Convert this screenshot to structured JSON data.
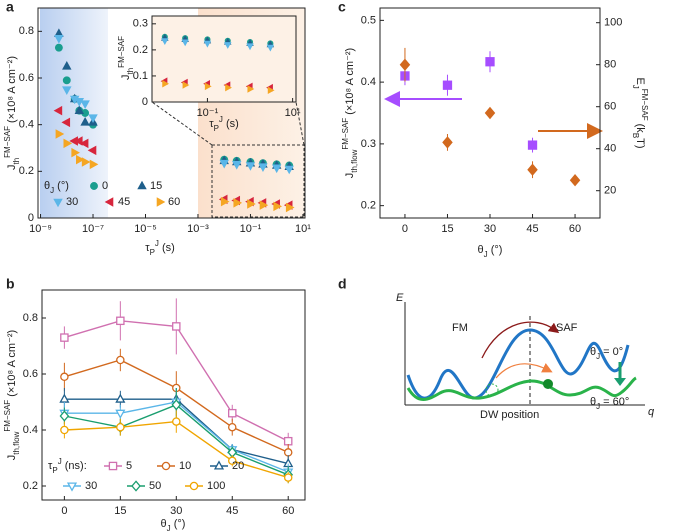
{
  "panel_labels": [
    "a",
    "b",
    "c",
    "d"
  ],
  "chart_data": [
    {
      "type": "scatter",
      "x_scale": "log",
      "x": [
        5e-09,
        1e-08,
        2e-08,
        3e-08,
        5e-08,
        1e-07,
        0.01,
        0.03,
        0.1,
        0.3,
        1,
        3
      ],
      "series": [
        {
          "name": "0",
          "color": "#1a9e8f",
          "marker": "circle",
          "values": [
            0.73,
            0.59,
            0.51,
            0.46,
            0.45,
            0.4,
            0.25,
            0.245,
            0.24,
            0.235,
            0.23,
            0.225
          ]
        },
        {
          "name": "15",
          "color": "#1f5f8b",
          "marker": "triangle-up",
          "values": [
            0.79,
            0.65,
            0.51,
            0.46,
            0.41,
            0.41,
            0.245,
            0.24,
            0.235,
            0.23,
            0.225,
            0.22
          ]
        },
        {
          "name": "30",
          "color": "#5bb6e8",
          "marker": "triangle-down",
          "values": [
            0.77,
            0.55,
            0.51,
            0.5,
            0.49,
            0.43,
            0.235,
            0.23,
            0.225,
            0.22,
            0.215,
            0.21
          ]
        },
        {
          "name": "45",
          "color": "#d7263d",
          "marker": "triangle-left",
          "values": [
            0.46,
            0.41,
            0.33,
            0.33,
            0.32,
            0.29,
            0.08,
            0.075,
            0.07,
            0.065,
            0.06,
            0.055
          ]
        },
        {
          "name": "60",
          "color": "#f5a623",
          "marker": "triangle-right",
          "values": [
            0.36,
            0.32,
            0.28,
            0.25,
            0.24,
            0.23,
            0.07,
            0.065,
            0.06,
            0.055,
            0.05,
            0.045
          ]
        }
      ],
      "xlim": [
        8e-10,
        12
      ],
      "ylim": [
        0,
        0.9
      ],
      "xticks": [
        {
          "value": 1e-09,
          "label": "10⁻⁹"
        },
        {
          "value": 1e-07,
          "label": "10⁻⁷"
        },
        {
          "value": 1e-05,
          "label": "10⁻⁵"
        },
        {
          "value": 0.001,
          "label": "10⁻³"
        },
        {
          "value": 0.1,
          "label": "10⁻¹"
        },
        {
          "value": 10,
          "label": "10¹"
        }
      ],
      "yticks": [
        0,
        0.2,
        0.4,
        0.6,
        0.8
      ],
      "xlabel": {
        "main": "τ",
        "sub": "P",
        "sup": "J",
        "rest": " (s)"
      },
      "ylabel": {
        "main": "J",
        "sub": "th",
        "sup": "FM−SAF",
        "rest": " (×10⁸ A cm⁻²)"
      },
      "legend_title": {
        "main": "θ",
        "sub": "J",
        "rest": " (°)"
      },
      "legend": "lower left",
      "inset": {
        "xlim": [
          0.005,
          12
        ],
        "ylim": [
          0,
          0.33
        ],
        "xticks": [
          {
            "value": 0.1,
            "label": "10⁻¹"
          },
          {
            "value": 10,
            "label": "10¹"
          }
        ],
        "yticks": [
          0,
          0.1,
          0.2,
          0.3
        ],
        "xlabel": {
          "main": "τ",
          "sub": "P",
          "sup": "J",
          "rest": " (s)"
        },
        "ylabel": {
          "main": "J",
          "sub": "th",
          "sup": "FM−SAF"
        }
      }
    },
    {
      "type": "line",
      "x": [
        0,
        15,
        30,
        45,
        60
      ],
      "series": [
        {
          "name": "5",
          "color": "#d070b0",
          "marker": "square",
          "values": [
            0.73,
            0.79,
            0.77,
            0.46,
            0.36
          ],
          "errors": [
            0.04,
            0.07,
            0.1,
            0.03,
            0.03
          ]
        },
        {
          "name": "10",
          "color": "#d2691e",
          "marker": "circle",
          "values": [
            0.59,
            0.65,
            0.55,
            0.41,
            0.32
          ],
          "errors": [
            0.05,
            0.04,
            0.06,
            0.03,
            0.03
          ]
        },
        {
          "name": "20",
          "color": "#1f5f8b",
          "marker": "triangle-up",
          "values": [
            0.51,
            0.51,
            0.51,
            0.33,
            0.28
          ],
          "errors": [
            0.04,
            0.03,
            0.04,
            0.02,
            0.03
          ]
        },
        {
          "name": "30",
          "color": "#5bb6e8",
          "marker": "triangle-down",
          "values": [
            0.46,
            0.46,
            0.5,
            0.33,
            0.25
          ],
          "errors": [
            0.04,
            0.03,
            0.05,
            0.02,
            0.03
          ]
        },
        {
          "name": "50",
          "color": "#1a9e6f",
          "marker": "diamond",
          "values": [
            0.45,
            0.41,
            0.49,
            0.32,
            0.24
          ],
          "errors": [
            0.03,
            0.03,
            0.06,
            0.02,
            0.03
          ]
        },
        {
          "name": "100",
          "color": "#f0a500",
          "marker": "circle",
          "values": [
            0.4,
            0.41,
            0.43,
            0.29,
            0.23
          ],
          "errors": [
            0.03,
            0.03,
            0.04,
            0.02,
            0.02
          ]
        }
      ],
      "xlim": [
        -6,
        64.5
      ],
      "ylim": [
        0.15,
        0.9
      ],
      "xticks": [
        0,
        15,
        30,
        45,
        60
      ],
      "yticks": [
        0.2,
        0.4,
        0.6,
        0.8
      ],
      "xlabel": {
        "main": "θ",
        "sub": "J",
        "rest": " (°)"
      },
      "ylabel": {
        "main": "J",
        "sub": "th,flow",
        "sup": "FM−SAF",
        "rest": " (×10⁸ A cm⁻²)"
      },
      "legend_title": {
        "main": "τ",
        "sub": "P",
        "sup": "J",
        "rest": " (ns):"
      },
      "legend": "lower left"
    },
    {
      "type": "scatter",
      "x": [
        0,
        15,
        30,
        45,
        60
      ],
      "series": [
        {
          "color": "#a64dff",
          "marker": "square",
          "axis": "y",
          "values": [
            0.41,
            0.395,
            0.433,
            0.298,
            null
          ],
          "errors": [
            0.015,
            0.017,
            0.017,
            0.012,
            null
          ]
        },
        {
          "color": "#d2691e",
          "marker": "diamond",
          "axis": "y2",
          "values": [
            80,
            43,
            57,
            30,
            25
          ],
          "errors": [
            8,
            4,
            2,
            4,
            2
          ]
        }
      ],
      "xlim": [
        -8.8,
        68.8
      ],
      "ylim": [
        0.18,
        0.52
      ],
      "y2lim": [
        7,
        107
      ],
      "xticks": [
        0,
        15,
        30,
        45,
        60
      ],
      "yticks": [
        0.2,
        0.3,
        0.4,
        0.5
      ],
      "y2ticks": [
        20,
        40,
        60,
        80,
        100
      ],
      "xlabel": {
        "main": "θ",
        "sub": "J",
        "rest": " (°)"
      },
      "ylabel": {
        "main": "J",
        "sub": "th,flow",
        "sup": "FM−SAF",
        "rest": " (×10⁸ A cm⁻²)"
      },
      "y2label": {
        "main": "E",
        "sub": "J",
        "sup": "FM−SAF",
        "rest": " (k",
        "rest_sub": "B",
        "rest_end": "T)"
      }
    }
  ],
  "diagram": {
    "y_axis": "E",
    "x_axis": "q",
    "x_label": "DW position",
    "left": "FM",
    "right": "SAF",
    "curve_top": {
      "main": "θ",
      "sub": "J",
      "rest": " = 0°"
    },
    "curve_bottom": {
      "main": "θ",
      "sub": "J",
      "rest": " = 60°"
    }
  }
}
